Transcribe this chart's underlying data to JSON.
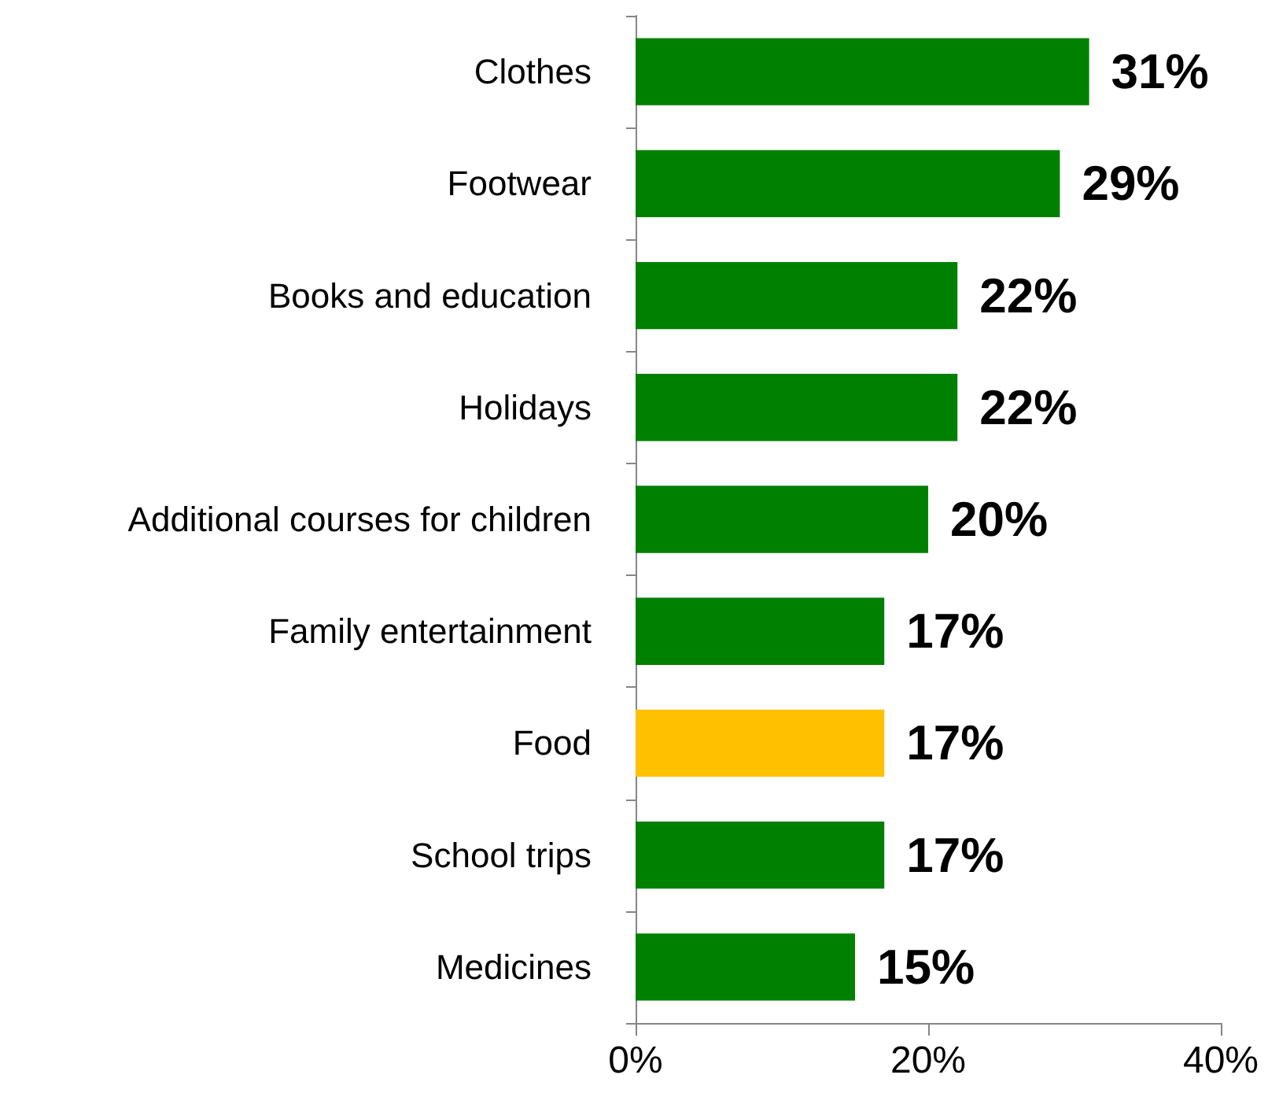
{
  "chart_data": {
    "type": "bar",
    "orientation": "horizontal",
    "categories": [
      "Clothes",
      "Footwear",
      "Books and education",
      "Holidays",
      "Additional courses for children",
      "Family entertainment",
      "Food",
      "School trips",
      "Medicines"
    ],
    "values": [
      31,
      29,
      22,
      22,
      20,
      17,
      17,
      17,
      15
    ],
    "colors": [
      "#008000",
      "#008000",
      "#008000",
      "#008000",
      "#008000",
      "#008000",
      "#ffc000",
      "#008000",
      "#008000"
    ],
    "value_labels": [
      "31%",
      "29%",
      "22%",
      "22%",
      "20%",
      "17%",
      "17%",
      "17%",
      "15%"
    ],
    "xlim": [
      0,
      40
    ],
    "xticks": [
      {
        "value": 0,
        "label": "0%"
      },
      {
        "value": 20,
        "label": "20%"
      },
      {
        "value": 40,
        "label": "40%"
      }
    ]
  }
}
